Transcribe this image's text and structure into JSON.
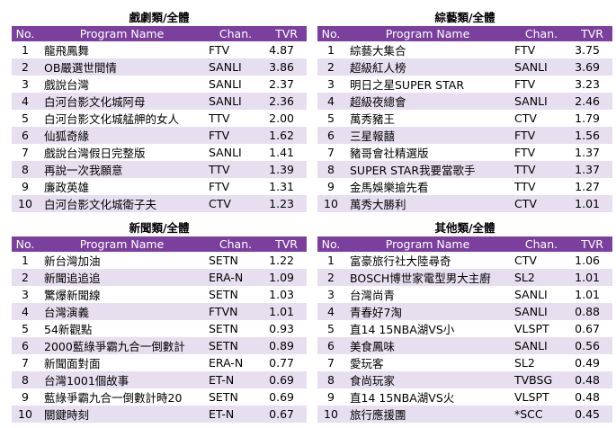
{
  "columns": {
    "no": "No.",
    "program": "Program Name",
    "chan": "Chan.",
    "tvr": "TVR"
  },
  "colors": {
    "header_bg": "#7b3f9e",
    "stripe": "#e7dff0"
  },
  "panels": [
    {
      "title": "戲劇類/全體",
      "rows": [
        {
          "no": "1",
          "name": "龍飛鳳舞",
          "chan": "FTV",
          "tvr": "4.87"
        },
        {
          "no": "2",
          "name": "OB嚴選世間情",
          "chan": "SANLI",
          "tvr": "3.86"
        },
        {
          "no": "3",
          "name": "戲說台灣",
          "chan": "SANLI",
          "tvr": "2.37"
        },
        {
          "no": "4",
          "name": "白河台影文化城阿母",
          "chan": "SANLI",
          "tvr": "2.36"
        },
        {
          "no": "5",
          "name": "白河台影文化城艋舺的女人",
          "chan": "TTV",
          "tvr": "2.00"
        },
        {
          "no": "6",
          "name": "仙狐奇緣",
          "chan": "FTV",
          "tvr": "1.62"
        },
        {
          "no": "7",
          "name": "戲說台灣假日完整版",
          "chan": "SANLI",
          "tvr": "1.41"
        },
        {
          "no": "8",
          "name": "再說一次我願意",
          "chan": "TTV",
          "tvr": "1.39"
        },
        {
          "no": "9",
          "name": "廉政英雄",
          "chan": "FTV",
          "tvr": "1.31"
        },
        {
          "no": "10",
          "name": "白河台影文化城衛子夫",
          "chan": "CTV",
          "tvr": "1.23"
        }
      ]
    },
    {
      "title": "綜藝類/全體",
      "rows": [
        {
          "no": "1",
          "name": "綜藝大集合",
          "chan": "FTV",
          "tvr": "3.75"
        },
        {
          "no": "2",
          "name": "超級紅人榜",
          "chan": "SANLI",
          "tvr": "3.69"
        },
        {
          "no": "3",
          "name": "明日之星SUPER STAR",
          "chan": "FTV",
          "tvr": "3.23"
        },
        {
          "no": "4",
          "name": "超級夜總會",
          "chan": "SANLI",
          "tvr": "2.46"
        },
        {
          "no": "5",
          "name": "萬秀豬王",
          "chan": "CTV",
          "tvr": "1.79"
        },
        {
          "no": "6",
          "name": "三星報囍",
          "chan": "FTV",
          "tvr": "1.56"
        },
        {
          "no": "7",
          "name": "豬哥會社精選版",
          "chan": "FTV",
          "tvr": "1.37"
        },
        {
          "no": "8",
          "name": "SUPER STAR我要當歌手",
          "chan": "TTV",
          "tvr": "1.37"
        },
        {
          "no": "9",
          "name": "金馬娛樂搶先看",
          "chan": "TTV",
          "tvr": "1.27"
        },
        {
          "no": "10",
          "name": "萬秀大勝利",
          "chan": "CTV",
          "tvr": "1.01"
        }
      ]
    },
    {
      "title": "新聞類/全體",
      "rows": [
        {
          "no": "1",
          "name": "新台灣加油",
          "chan": "SETN",
          "tvr": "1.22"
        },
        {
          "no": "2",
          "name": "新聞追追追",
          "chan": "ERA-N",
          "tvr": "1.09"
        },
        {
          "no": "3",
          "name": "驚爆新聞線",
          "chan": "SETN",
          "tvr": "1.03"
        },
        {
          "no": "4",
          "name": "台灣演義",
          "chan": "FTVN",
          "tvr": "1.01"
        },
        {
          "no": "5",
          "name": "54新觀點",
          "chan": "SETN",
          "tvr": "0.93"
        },
        {
          "no": "6",
          "name": "2000藍綠爭霸九合一倒數計",
          "chan": "SETN",
          "tvr": "0.89"
        },
        {
          "no": "7",
          "name": "新聞面對面",
          "chan": "ERA-N",
          "tvr": "0.77"
        },
        {
          "no": "8",
          "name": "台灣1001個故事",
          "chan": "ET-N",
          "tvr": "0.69"
        },
        {
          "no": "9",
          "name": "藍綠爭霸九合一倒數計時20",
          "chan": "SETN",
          "tvr": "0.69"
        },
        {
          "no": "10",
          "name": "關鍵時刻",
          "chan": "ET-N",
          "tvr": "0.67"
        }
      ]
    },
    {
      "title": "其他類/全體",
      "rows": [
        {
          "no": "1",
          "name": "富豪旅行社大陸尋奇",
          "chan": "CTV",
          "tvr": "1.06"
        },
        {
          "no": "2",
          "name": "BOSCH博世家電型男大主廚",
          "chan": "SL2",
          "tvr": "1.01"
        },
        {
          "no": "3",
          "name": "台灣尚青",
          "chan": "SANLI",
          "tvr": "1.01"
        },
        {
          "no": "4",
          "name": "青春好7淘",
          "chan": "SANLI",
          "tvr": "0.88"
        },
        {
          "no": "5",
          "name": "直14 15NBA湖VS小",
          "chan": "VLSPT",
          "tvr": "0.67"
        },
        {
          "no": "6",
          "name": "美食鳳味",
          "chan": "SANLI",
          "tvr": "0.56"
        },
        {
          "no": "7",
          "name": "愛玩客",
          "chan": "SL2",
          "tvr": "0.49"
        },
        {
          "no": "8",
          "name": "食尚玩家",
          "chan": "TVBSG",
          "tvr": "0.48"
        },
        {
          "no": "9",
          "name": "直14 15NBA湖VS火",
          "chan": "VLSPT",
          "tvr": "0.48"
        },
        {
          "no": "10",
          "name": "旅行應援團",
          "chan": "*SCC",
          "tvr": "0.45"
        }
      ]
    }
  ]
}
